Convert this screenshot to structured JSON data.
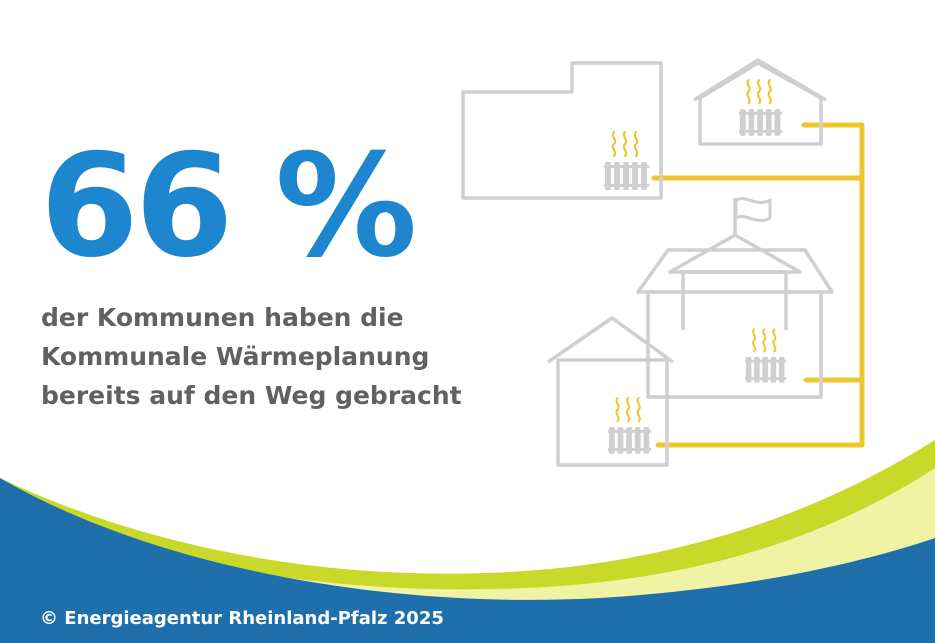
{
  "headline": {
    "percentage": "66 %",
    "description_lines": [
      "der Kommunen haben die",
      "Kommunale Wärmeplanung",
      "bereits auf den Weg gebracht"
    ]
  },
  "footer": {
    "copyright": "© Energieagentur Rheinland-Pfalz 2025"
  },
  "colors": {
    "accent_blue": "#1d86cf",
    "text_gray": "#616161",
    "outline_gray": "#cfcfcf",
    "pipe_yellow": "#f0c62e",
    "wave_green": "#c8d92a",
    "wave_light": "#f1f3a4",
    "wave_blue": "#1f6fac"
  },
  "illustration": {
    "icons": [
      "heat-network-illustration",
      "radiator-icon",
      "heat-waves-icon",
      "flag-icon"
    ]
  }
}
